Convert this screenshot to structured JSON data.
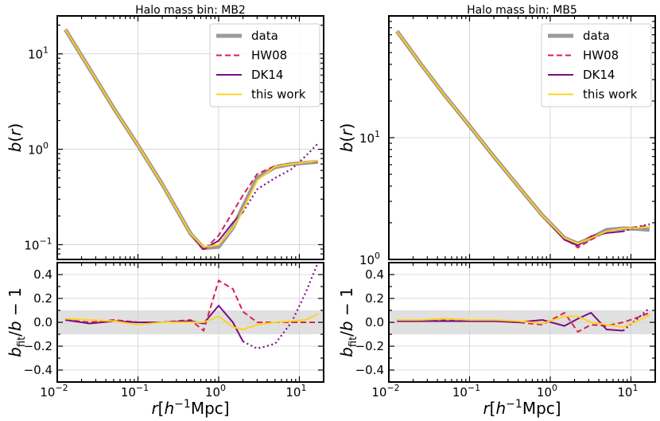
{
  "colors": {
    "data": "#9a9a9a",
    "HW08": "#d6214f",
    "DK14": "#7b0d87",
    "this work": "#ffd21f",
    "band": "#e0e0e0"
  },
  "chart_data": [
    {
      "type": "line",
      "title": "Halo mass bin: MB2",
      "xlabel": "r[h⁻¹Mpc]",
      "ylabel": "b(r)",
      "xscale": "log",
      "yscale": "log",
      "xlim": [
        0.01,
        20
      ],
      "ylim": [
        0.07,
        25
      ],
      "grid": true,
      "legend_position": "top-right",
      "xtick_labels": [
        {
          "base": "10",
          "exp": "−2"
        },
        {
          "base": "10",
          "exp": "−1"
        },
        {
          "base": "10",
          "exp": "0"
        },
        {
          "base": "10",
          "exp": "1"
        }
      ],
      "ytick_labels": [
        {
          "base": "10",
          "exp": "−1",
          "v": 0.1
        },
        {
          "base": "10",
          "exp": "0",
          "v": 1
        },
        {
          "base": "10",
          "exp": "1",
          "v": 10
        }
      ],
      "x": [
        0.0126,
        0.0251,
        0.05,
        0.1,
        0.2,
        0.45,
        0.65,
        1.0,
        1.5,
        2.0,
        3.0,
        5.0,
        8.0,
        12.0,
        17.0
      ],
      "series": [
        {
          "name": "data",
          "style": "thick",
          "values": [
            18,
            7.0,
            2.7,
            1.1,
            0.43,
            0.13,
            0.092,
            0.095,
            0.15,
            0.25,
            0.5,
            0.65,
            0.7,
            0.72,
            0.74
          ]
        },
        {
          "name": "HW08",
          "style": "dashed",
          "values": [
            18,
            7.0,
            2.7,
            1.1,
            0.43,
            0.13,
            0.087,
            0.125,
            0.22,
            0.33,
            0.55,
            0.67,
            0.7,
            0.73,
            0.75
          ]
        },
        {
          "name": "DK14",
          "style": "solid-dotted",
          "dotted_from_x": 2.0,
          "values": [
            18,
            7.0,
            2.7,
            1.1,
            0.43,
            0.13,
            0.09,
            0.11,
            0.17,
            0.22,
            0.38,
            0.5,
            0.62,
            0.85,
            1.15
          ]
        },
        {
          "name": "this work",
          "style": "solid",
          "values": [
            18,
            7.0,
            2.7,
            1.1,
            0.43,
            0.13,
            0.094,
            0.1,
            0.15,
            0.23,
            0.47,
            0.66,
            0.7,
            0.73,
            0.76
          ]
        }
      ],
      "residual": {
        "ylabel": "b_fit/b − 1",
        "ylim": [
          -0.5,
          0.5
        ],
        "ytick_labels": [
          "−0.4",
          "−0.2",
          "0.0",
          "0.2",
          "0.4"
        ],
        "yticks": [
          -0.4,
          -0.2,
          0.0,
          0.2,
          0.4
        ],
        "band": [
          -0.1,
          0.1
        ],
        "series": [
          {
            "name": "HW08",
            "values": [
              0.02,
              0.0,
              0.02,
              0.0,
              0.0,
              0.02,
              -0.07,
              0.35,
              0.28,
              0.09,
              0.0,
              0.0,
              0.0,
              0.0,
              0.0
            ]
          },
          {
            "name": "DK14",
            "dotted_from_x": 2.0,
            "values": [
              0.02,
              -0.01,
              0.01,
              0.0,
              0.0,
              0.01,
              -0.01,
              0.14,
              0.0,
              -0.16,
              -0.22,
              -0.18,
              0.0,
              0.25,
              0.5
            ]
          },
          {
            "name": "this work",
            "values": [
              0.03,
              0.02,
              0.01,
              -0.02,
              0.0,
              0.0,
              0.0,
              0.05,
              -0.04,
              -0.06,
              -0.02,
              0.0,
              0.01,
              0.02,
              0.07
            ]
          }
        ]
      }
    },
    {
      "type": "line",
      "title": "Halo mass bin: MB5",
      "xlabel": "r[h⁻¹Mpc]",
      "ylabel": "b(r)",
      "xscale": "log",
      "yscale": "log",
      "xlim": [
        0.01,
        20
      ],
      "ylim": [
        1,
        100
      ],
      "grid": true,
      "legend_position": "top-right",
      "xtick_labels": [
        {
          "base": "10",
          "exp": "−2"
        },
        {
          "base": "10",
          "exp": "−1"
        },
        {
          "base": "10",
          "exp": "0"
        },
        {
          "base": "10",
          "exp": "1"
        }
      ],
      "ytick_labels": [
        {
          "base": "10",
          "exp": "0",
          "v": 1
        },
        {
          "base": "10",
          "exp": "1",
          "v": 10
        }
      ],
      "x": [
        0.0126,
        0.0251,
        0.05,
        0.1,
        0.2,
        0.4,
        0.8,
        1.5,
        2.2,
        3.2,
        5.0,
        8.0,
        12.0,
        17.0
      ],
      "series": [
        {
          "name": "data",
          "style": "thick",
          "values": [
            75,
            40,
            22,
            12.5,
            7.0,
            4.0,
            2.3,
            1.5,
            1.35,
            1.5,
            1.75,
            1.8,
            1.78,
            1.75
          ]
        },
        {
          "name": "HW08",
          "style": "dashed",
          "values": [
            75,
            40,
            22,
            12.5,
            7.0,
            4.0,
            2.3,
            1.5,
            1.25,
            1.45,
            1.7,
            1.8,
            1.85,
            1.9
          ]
        },
        {
          "name": "DK14",
          "style": "solid-dotted",
          "dotted_from_x": 8.0,
          "values": [
            75,
            40,
            22,
            12.5,
            7.0,
            4.0,
            2.3,
            1.45,
            1.3,
            1.55,
            1.65,
            1.7,
            1.85,
            1.95
          ]
        },
        {
          "name": "this work",
          "style": "solid",
          "values": [
            75,
            40,
            22,
            12.5,
            7.0,
            4.0,
            2.3,
            1.5,
            1.35,
            1.5,
            1.7,
            1.8,
            1.82,
            1.85
          ]
        }
      ],
      "residual": {
        "ylabel": "b_fit/b − 1",
        "ylim": [
          -0.5,
          0.5
        ],
        "ytick_labels": [
          "−0.4",
          "−0.2",
          "0.0",
          "0.2",
          "0.4"
        ],
        "yticks": [
          -0.4,
          -0.2,
          0.0,
          0.2,
          0.4
        ],
        "band": [
          -0.1,
          0.1
        ],
        "series": [
          {
            "name": "HW08",
            "values": [
              0.02,
              0.02,
              0.02,
              0.02,
              0.01,
              0.0,
              -0.02,
              0.08,
              -0.08,
              -0.02,
              -0.03,
              0.0,
              0.04,
              0.08
            ]
          },
          {
            "name": "DK14",
            "dotted_from_x": 8.0,
            "values": [
              0.01,
              0.01,
              0.01,
              0.01,
              0.01,
              0.0,
              0.02,
              -0.03,
              0.03,
              0.08,
              -0.06,
              -0.07,
              0.03,
              0.12
            ]
          },
          {
            "name": "this work",
            "values": [
              0.02,
              0.02,
              0.03,
              0.02,
              0.02,
              0.01,
              -0.01,
              0.05,
              0.05,
              0.0,
              -0.02,
              -0.04,
              0.01,
              0.06
            ]
          }
        ]
      }
    }
  ]
}
